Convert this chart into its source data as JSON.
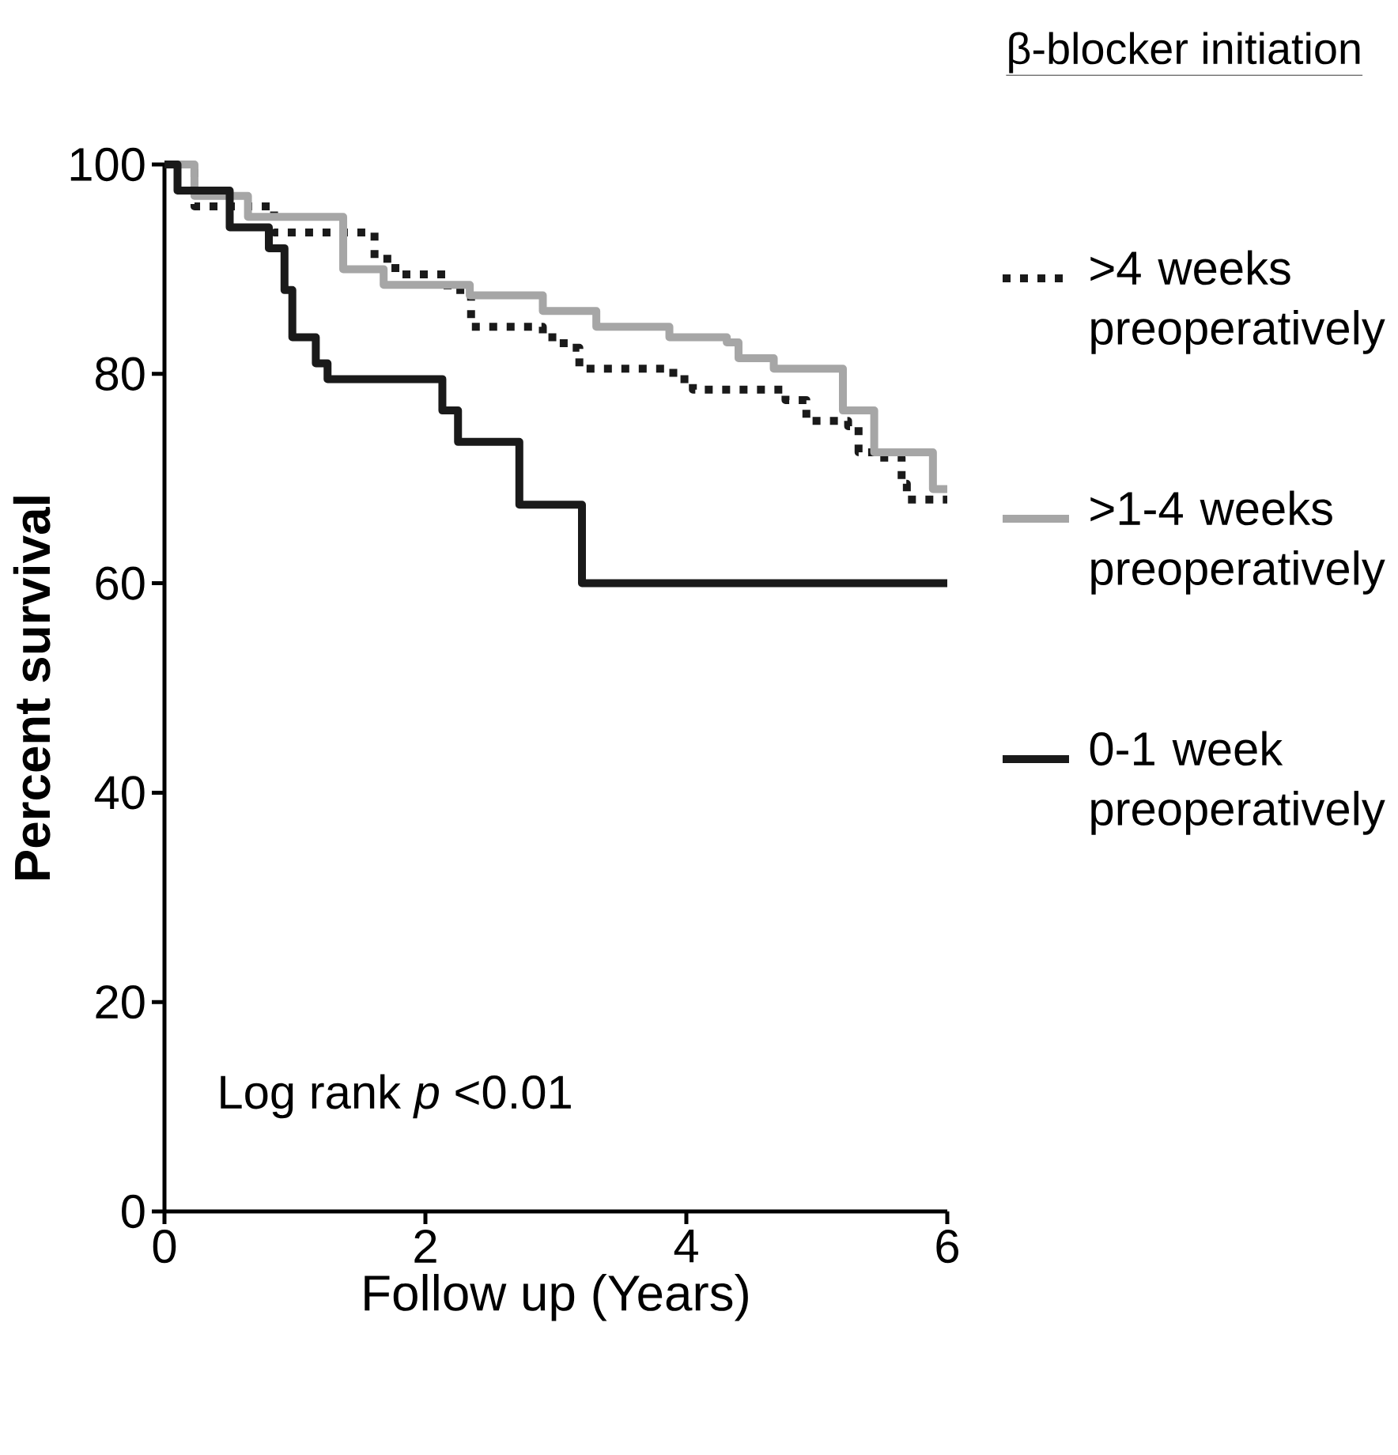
{
  "chart_data": {
    "type": "step",
    "xlabel": "Follow up (Years)",
    "ylabel": "Percent survival",
    "legend_title": "β-blocker initiation",
    "legend": "right",
    "xlim": [
      0,
      6
    ],
    "ylim": [
      0,
      100
    ],
    "xticks": [
      0,
      2,
      4,
      6
    ],
    "yticks": [
      0,
      20,
      40,
      60,
      80,
      100
    ],
    "annotations": [
      "Log rank *p* <0.01"
    ],
    "series": [
      {
        "name": ">4 weeks preoperatively",
        "color": "#1a1a1a",
        "line_style": "dotted",
        "x": [
          0,
          0.23,
          0.84,
          1.61,
          1.77,
          2.17,
          2.35,
          2.9,
          3.06,
          3.18,
          3.9,
          4.05,
          4.76,
          4.92,
          5.24,
          5.32,
          5.48,
          5.65,
          5.69,
          6
        ],
        "values": [
          100,
          96,
          93.5,
          91,
          89.5,
          88,
          84.5,
          83.5,
          82.5,
          80.5,
          79.5,
          78.5,
          77.5,
          75.5,
          75,
          72.5,
          72,
          69.5,
          68,
          68
        ]
      },
      {
        "name": ">1-4 weeks preoperatively",
        "color": "#a6a6a6",
        "line_style": "solid",
        "x": [
          0,
          0.23,
          0.64,
          1.37,
          1.68,
          2.34,
          2.9,
          3.31,
          3.87,
          4.31,
          4.4,
          4.67,
          5.2,
          5.44,
          5.89,
          6
        ],
        "values": [
          100,
          97,
          95,
          90,
          88.5,
          87.5,
          86,
          84.5,
          83.5,
          83,
          81.5,
          80.5,
          76.5,
          72.5,
          69,
          69
        ]
      },
      {
        "name": "0-1 week preoperatively",
        "color": "#1a1a1a",
        "line_style": "solid",
        "x": [
          0,
          0.1,
          0.5,
          0.8,
          0.92,
          0.98,
          1.16,
          1.25,
          2.13,
          2.25,
          2.72,
          3.2,
          6
        ],
        "values": [
          100,
          97.5,
          94,
          92,
          88,
          83.5,
          81,
          79.5,
          76.5,
          73.5,
          67.5,
          60,
          60
        ]
      }
    ]
  }
}
